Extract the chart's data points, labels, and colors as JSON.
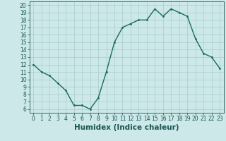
{
  "x": [
    0,
    1,
    2,
    3,
    4,
    5,
    6,
    7,
    8,
    9,
    10,
    11,
    12,
    13,
    14,
    15,
    16,
    17,
    18,
    19,
    20,
    21,
    22,
    23
  ],
  "y": [
    12,
    11,
    10.5,
    9.5,
    8.5,
    6.5,
    6.5,
    6.0,
    7.5,
    11,
    15,
    17,
    17.5,
    18,
    18,
    19.5,
    18.5,
    19.5,
    19,
    18.5,
    15.5,
    13.5,
    13,
    11.5
  ],
  "xlabel": "Humidex (Indice chaleur)",
  "ylim": [
    5.5,
    20.5
  ],
  "xlim": [
    -0.5,
    23.5
  ],
  "yticks": [
    6,
    7,
    8,
    9,
    10,
    11,
    12,
    13,
    14,
    15,
    16,
    17,
    18,
    19,
    20
  ],
  "xticks": [
    0,
    1,
    2,
    3,
    4,
    5,
    6,
    7,
    8,
    9,
    10,
    11,
    12,
    13,
    14,
    15,
    16,
    17,
    18,
    19,
    20,
    21,
    22,
    23
  ],
  "line_color": "#1a6b5a",
  "marker_color": "#1a6b5a",
  "bg_color": "#cce8e8",
  "grid_color": "#aacccc",
  "tick_color": "#1a5555",
  "xlabel_fontsize": 7.5,
  "tick_fontsize": 5.5
}
